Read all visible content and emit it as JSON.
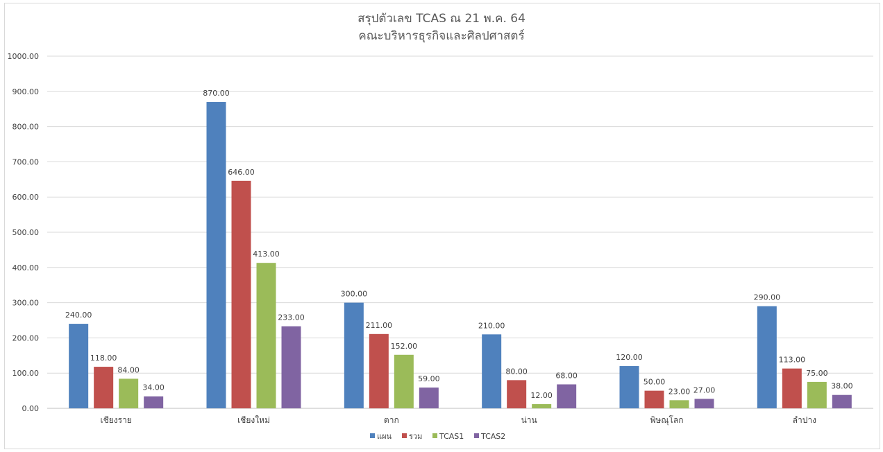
{
  "chart_data": {
    "type": "bar",
    "title": "สรุปตัวเลข TCAS ณ 21 พ.ค. 64",
    "subtitle": "คณะบริหารธุรกิจและศิลปศาสตร์",
    "categories": [
      "เชียงราย",
      "เชียงใหม่",
      "ตาก",
      "น่าน",
      "พิษณุโลก",
      "ลำปาง"
    ],
    "series": [
      {
        "name": "แผน",
        "color": "#4f81bd",
        "values": [
          240,
          870,
          300,
          210,
          120,
          290
        ]
      },
      {
        "name": "รวม",
        "color": "#c0504d",
        "values": [
          118,
          646,
          211,
          80,
          50,
          113
        ]
      },
      {
        "name": "TCAS1",
        "color": "#9bbb59",
        "values": [
          84,
          413,
          152,
          12,
          23,
          75
        ]
      },
      {
        "name": "TCAS2",
        "color": "#8064a2",
        "values": [
          34,
          233,
          59,
          68,
          27,
          38
        ]
      }
    ],
    "ylim": [
      0,
      1000
    ],
    "yticks": [
      0,
      100,
      200,
      300,
      400,
      500,
      600,
      700,
      800,
      900,
      1000
    ],
    "value_format_decimals": 2,
    "grid": true,
    "legend_position": "bottom"
  }
}
